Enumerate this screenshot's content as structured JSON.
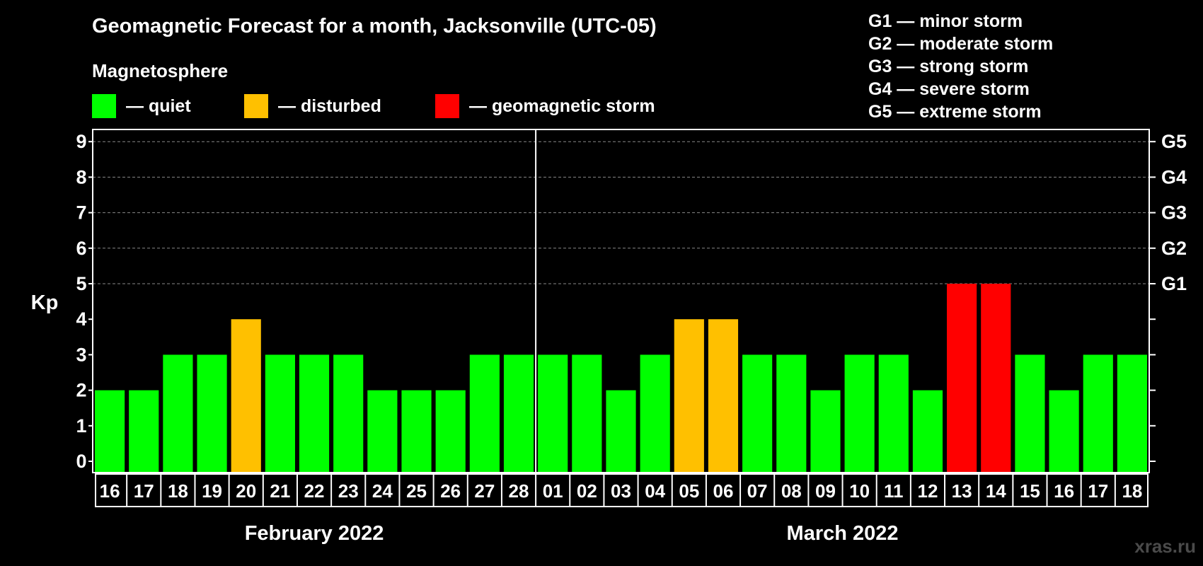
{
  "header": {
    "title": "Geomagnetic Forecast for a month, Jacksonville (UTC-05)",
    "subtitle": "Magnetosphere"
  },
  "legend": [
    {
      "label": "— quiet",
      "color": "#00ff00"
    },
    {
      "label": "— disturbed",
      "color": "#ffc000"
    },
    {
      "label": "— geomagnetic storm",
      "color": "#ff0000"
    }
  ],
  "g_legend": [
    "G1 — minor storm",
    "G2 — moderate storm",
    "G3 — strong storm",
    "G4 — severe storm",
    "G5 — extreme storm"
  ],
  "watermark": "xras.ru",
  "chart_data": {
    "type": "bar",
    "ylabel": "Kp",
    "ylim": [
      0,
      9
    ],
    "yticks": [
      0,
      1,
      2,
      3,
      4,
      5,
      6,
      7,
      8,
      9
    ],
    "right_axis_labels": [
      {
        "kp": 5,
        "label": "G1"
      },
      {
        "kp": 6,
        "label": "G2"
      },
      {
        "kp": 7,
        "label": "G3"
      },
      {
        "kp": 8,
        "label": "G4"
      },
      {
        "kp": 9,
        "label": "G5"
      }
    ],
    "grid": "dashed horizontal at Kp 5-9",
    "colors": {
      "quiet": "#00ff00",
      "disturbed": "#ffc000",
      "storm": "#ff0000"
    },
    "categories": [
      "16",
      "17",
      "18",
      "19",
      "20",
      "21",
      "22",
      "23",
      "24",
      "25",
      "26",
      "27",
      "28",
      "01",
      "02",
      "03",
      "04",
      "05",
      "06",
      "07",
      "08",
      "09",
      "10",
      "11",
      "12",
      "13",
      "14",
      "15",
      "16",
      "17",
      "18"
    ],
    "values": [
      2,
      2,
      3,
      3,
      4,
      3,
      3,
      3,
      2,
      2,
      2,
      3,
      3,
      3,
      3,
      2,
      3,
      4,
      4,
      3,
      3,
      2,
      3,
      3,
      2,
      5,
      5,
      3,
      2,
      3,
      3
    ],
    "status": [
      "quiet",
      "quiet",
      "quiet",
      "quiet",
      "disturbed",
      "quiet",
      "quiet",
      "quiet",
      "quiet",
      "quiet",
      "quiet",
      "quiet",
      "quiet",
      "quiet",
      "quiet",
      "quiet",
      "quiet",
      "disturbed",
      "disturbed",
      "quiet",
      "quiet",
      "quiet",
      "quiet",
      "quiet",
      "quiet",
      "storm",
      "storm",
      "quiet",
      "quiet",
      "quiet",
      "quiet"
    ],
    "months": [
      {
        "label": "February 2022",
        "start": 0,
        "count": 13
      },
      {
        "label": "March 2022",
        "start": 13,
        "count": 18
      }
    ]
  }
}
